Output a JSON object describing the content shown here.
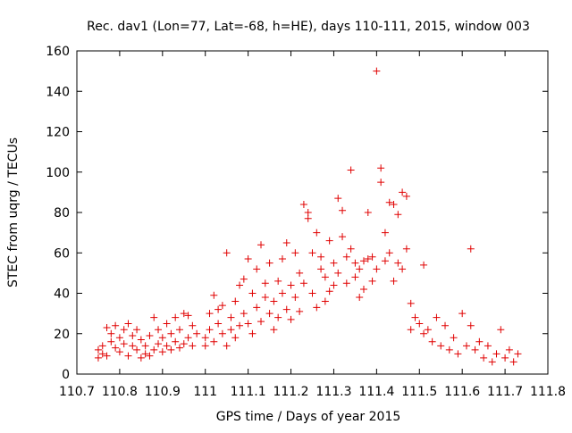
{
  "chart_data": {
    "type": "scatter",
    "title": "Rec. dav1 (Lon=77, Lat=-68, h=HE), days 110-111, 2015, window 003",
    "xlabel": "GPS time / Days of year 2015",
    "ylabel": "STEC from uqrg / TECUs",
    "xlim": [
      110.7,
      111.8
    ],
    "ylim": [
      0,
      160
    ],
    "x_ticks": [
      "110.7",
      "110.8",
      "110.9",
      "111",
      "111.1",
      "111.2",
      "111.3",
      "111.4",
      "111.5",
      "111.6",
      "111.7",
      "111.8"
    ],
    "y_ticks": [
      "0",
      "20",
      "40",
      "60",
      "80",
      "100",
      "120",
      "140",
      "160"
    ],
    "grid": false,
    "marker": "+",
    "marker_color": "#e00000",
    "series": [
      {
        "points": [
          [
            110.75,
            8
          ],
          [
            110.75,
            12
          ],
          [
            110.76,
            14
          ],
          [
            110.76,
            10
          ],
          [
            110.77,
            23
          ],
          [
            110.77,
            9
          ],
          [
            110.78,
            16
          ],
          [
            110.78,
            20
          ],
          [
            110.79,
            13
          ],
          [
            110.79,
            24
          ],
          [
            110.8,
            18
          ],
          [
            110.8,
            11
          ],
          [
            110.81,
            22
          ],
          [
            110.81,
            15
          ],
          [
            110.82,
            25
          ],
          [
            110.82,
            9
          ],
          [
            110.83,
            14
          ],
          [
            110.83,
            19
          ],
          [
            110.84,
            12
          ],
          [
            110.84,
            22
          ],
          [
            110.85,
            8
          ],
          [
            110.85,
            17
          ],
          [
            110.86,
            10
          ],
          [
            110.86,
            14
          ],
          [
            110.87,
            19
          ],
          [
            110.87,
            9
          ],
          [
            110.88,
            28
          ],
          [
            110.88,
            12
          ],
          [
            110.89,
            15
          ],
          [
            110.89,
            22
          ],
          [
            110.9,
            18
          ],
          [
            110.9,
            11
          ],
          [
            110.91,
            25
          ],
          [
            110.91,
            14
          ],
          [
            110.92,
            20
          ],
          [
            110.92,
            12
          ],
          [
            110.93,
            16
          ],
          [
            110.93,
            28
          ],
          [
            110.94,
            13
          ],
          [
            110.94,
            22
          ],
          [
            110.95,
            30
          ],
          [
            110.95,
            15
          ],
          [
            110.96,
            29
          ],
          [
            110.96,
            18
          ],
          [
            110.97,
            24
          ],
          [
            110.97,
            14
          ],
          [
            110.98,
            20
          ],
          [
            111.0,
            14
          ],
          [
            111.0,
            18
          ],
          [
            111.01,
            30
          ],
          [
            111.01,
            22
          ],
          [
            111.02,
            39
          ],
          [
            111.02,
            16
          ],
          [
            111.03,
            25
          ],
          [
            111.03,
            32
          ],
          [
            111.04,
            20
          ],
          [
            111.04,
            34
          ],
          [
            111.05,
            60
          ],
          [
            111.05,
            14
          ],
          [
            111.06,
            28
          ],
          [
            111.06,
            22
          ],
          [
            111.07,
            36
          ],
          [
            111.07,
            18
          ],
          [
            111.08,
            44
          ],
          [
            111.08,
            24
          ],
          [
            111.09,
            30
          ],
          [
            111.09,
            47
          ],
          [
            111.1,
            25
          ],
          [
            111.1,
            57
          ],
          [
            111.11,
            40
          ],
          [
            111.11,
            20
          ],
          [
            111.12,
            52
          ],
          [
            111.12,
            33
          ],
          [
            111.13,
            64
          ],
          [
            111.13,
            26
          ],
          [
            111.14,
            45
          ],
          [
            111.14,
            38
          ],
          [
            111.15,
            30
          ],
          [
            111.15,
            55
          ],
          [
            111.16,
            22
          ],
          [
            111.16,
            36
          ],
          [
            111.17,
            46
          ],
          [
            111.17,
            28
          ],
          [
            111.18,
            57
          ],
          [
            111.18,
            40
          ],
          [
            111.19,
            65
          ],
          [
            111.19,
            32
          ],
          [
            111.2,
            44
          ],
          [
            111.2,
            27
          ],
          [
            111.21,
            60
          ],
          [
            111.21,
            38
          ],
          [
            111.22,
            31
          ],
          [
            111.22,
            50
          ],
          [
            111.23,
            84
          ],
          [
            111.23,
            45
          ],
          [
            111.24,
            77
          ],
          [
            111.24,
            80
          ],
          [
            111.25,
            40
          ],
          [
            111.25,
            60
          ],
          [
            111.26,
            70
          ],
          [
            111.26,
            33
          ],
          [
            111.27,
            52
          ],
          [
            111.27,
            58
          ],
          [
            111.28,
            36
          ],
          [
            111.28,
            48
          ],
          [
            111.29,
            66
          ],
          [
            111.29,
            41
          ],
          [
            111.3,
            55
          ],
          [
            111.3,
            44
          ],
          [
            111.31,
            87
          ],
          [
            111.31,
            50
          ],
          [
            111.32,
            81
          ],
          [
            111.32,
            68
          ],
          [
            111.33,
            58
          ],
          [
            111.33,
            45
          ],
          [
            111.34,
            101
          ],
          [
            111.34,
            62
          ],
          [
            111.35,
            48
          ],
          [
            111.35,
            55
          ],
          [
            111.36,
            38
          ],
          [
            111.36,
            52
          ],
          [
            111.37,
            56
          ],
          [
            111.37,
            42
          ],
          [
            111.38,
            80
          ],
          [
            111.38,
            57
          ],
          [
            111.39,
            46
          ],
          [
            111.39,
            58
          ],
          [
            111.4,
            150
          ],
          [
            111.4,
            52
          ],
          [
            111.41,
            102
          ],
          [
            111.41,
            95
          ],
          [
            111.42,
            70
          ],
          [
            111.42,
            56
          ],
          [
            111.43,
            85
          ],
          [
            111.43,
            60
          ],
          [
            111.44,
            84
          ],
          [
            111.44,
            46
          ],
          [
            111.45,
            79
          ],
          [
            111.45,
            55
          ],
          [
            111.46,
            90
          ],
          [
            111.46,
            52
          ],
          [
            111.47,
            88
          ],
          [
            111.47,
            62
          ],
          [
            111.48,
            35
          ],
          [
            111.48,
            22
          ],
          [
            111.49,
            28
          ],
          [
            111.5,
            25
          ],
          [
            111.51,
            54
          ],
          [
            111.51,
            20
          ],
          [
            111.52,
            22
          ],
          [
            111.53,
            16
          ],
          [
            111.54,
            28
          ],
          [
            111.55,
            14
          ],
          [
            111.56,
            24
          ],
          [
            111.57,
            12
          ],
          [
            111.58,
            18
          ],
          [
            111.59,
            10
          ],
          [
            111.6,
            30
          ],
          [
            111.61,
            14
          ],
          [
            111.62,
            62
          ],
          [
            111.62,
            24
          ],
          [
            111.63,
            12
          ],
          [
            111.64,
            16
          ],
          [
            111.65,
            8
          ],
          [
            111.66,
            14
          ],
          [
            111.67,
            6
          ],
          [
            111.68,
            10
          ],
          [
            111.69,
            22
          ],
          [
            111.7,
            8
          ],
          [
            111.71,
            12
          ],
          [
            111.72,
            6
          ],
          [
            111.73,
            10
          ]
        ]
      }
    ]
  }
}
